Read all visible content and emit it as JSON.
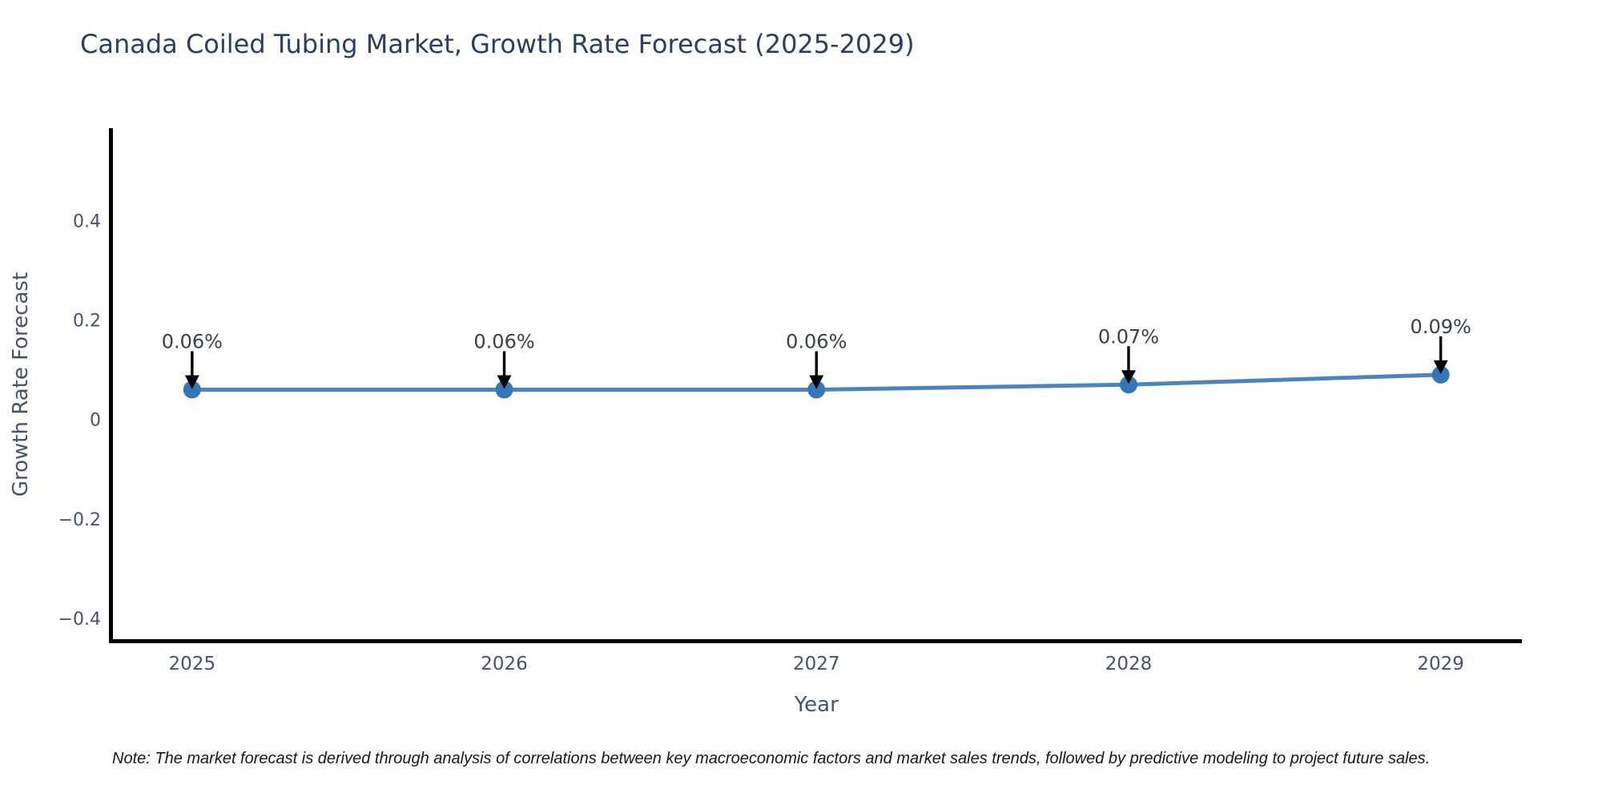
{
  "title": {
    "text": "Canada Coiled Tubing Market, Growth Rate Forecast (2025-2029)"
  },
  "footnote": {
    "text": "Note: The market forecast is derived through analysis of correlations between key macroeconomic factors and market sales trends, followed by predictive modeling to project future sales."
  },
  "colors": {
    "line": "#4a86bd",
    "marker": "#3477b5",
    "spine": "#000000",
    "title_text": "#2b3f5e",
    "axis_text": "#44536e",
    "annotation_text": "#39404d",
    "arrow": "#000000",
    "background": "#ffffff"
  },
  "chart_data": {
    "type": "line",
    "title": "Canada Coiled Tubing Market, Growth Rate Forecast (2025-2029)",
    "xlabel": "Year",
    "ylabel": "Growth Rate Forecast",
    "x": [
      2025,
      2026,
      2027,
      2028,
      2029
    ],
    "values": [
      0.06,
      0.06,
      0.06,
      0.07,
      0.09
    ],
    "point_labels": [
      "0.06%",
      "0.06%",
      "0.06%",
      "0.07%",
      "0.09%"
    ],
    "y_ticks": [
      0.4,
      0.2,
      0,
      -0.2,
      -0.4
    ],
    "x_ticks": [
      2025,
      2026,
      2027,
      2028,
      2029
    ],
    "ylim": [
      -0.446,
      0.586
    ],
    "xlim": [
      2024.74,
      2029.26
    ],
    "grid": false,
    "legend": "none",
    "annotations": "arrow-down-to-each-point"
  }
}
